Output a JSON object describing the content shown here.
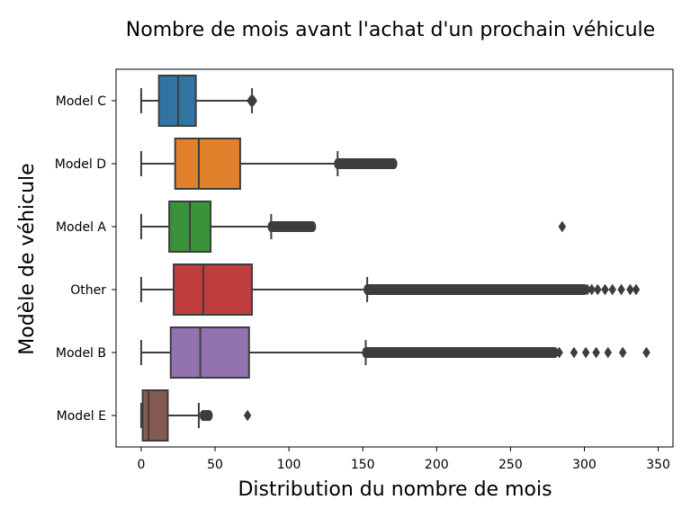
{
  "chart_data": {
    "type": "boxplot",
    "orientation": "horizontal",
    "title": "Nombre de mois avant l'achat d'un prochain véhicule",
    "xlabel": "Distribution du nombre de mois",
    "ylabel": "Modèle de véhicule",
    "xlim": [
      -17,
      360
    ],
    "xticks": [
      0,
      50,
      100,
      150,
      200,
      250,
      300,
      350
    ],
    "grid": false,
    "categories": [
      "Model C",
      "Model D",
      "Model A",
      "Other",
      "Model B",
      "Model E"
    ],
    "colors": [
      "#3274a1",
      "#e1812c",
      "#3a923a",
      "#c03d3e",
      "#9372b2",
      "#845b53"
    ],
    "boxes": [
      {
        "label": "Model C",
        "whisker_low": 0,
        "q1": 12,
        "median": 25,
        "q3": 37,
        "whisker_high": 75,
        "outliers_range": [
          74,
          76
        ],
        "outliers": [
          74,
          76
        ]
      },
      {
        "label": "Model D",
        "whisker_low": 0,
        "q1": 23,
        "median": 39,
        "q3": 67,
        "whisker_high": 133,
        "outliers_range": [
          133,
          171
        ],
        "outliers": []
      },
      {
        "label": "Model A",
        "whisker_low": 0,
        "q1": 19,
        "median": 33,
        "q3": 47,
        "whisker_high": 88,
        "outliers_range": [
          88,
          116
        ],
        "outliers": [
          285
        ]
      },
      {
        "label": "Other",
        "whisker_low": 0,
        "q1": 22,
        "median": 42,
        "q3": 75,
        "whisker_high": 153,
        "outliers_range": [
          153,
          300
        ],
        "outliers": [
          302,
          305,
          309,
          314,
          319,
          325,
          331,
          335
        ]
      },
      {
        "label": "Model B",
        "whisker_low": 0,
        "q1": 20,
        "median": 40,
        "q3": 73,
        "whisker_high": 152,
        "outliers_range": [
          152,
          280
        ],
        "outliers": [
          283,
          293,
          301,
          308,
          316,
          326,
          342
        ]
      },
      {
        "label": "Model E",
        "whisker_low": 0,
        "q1": 1,
        "median": 5,
        "q3": 18,
        "whisker_high": 39,
        "outliers_range": [
          42,
          46
        ],
        "outliers": [
          42,
          46,
          72
        ]
      }
    ]
  }
}
